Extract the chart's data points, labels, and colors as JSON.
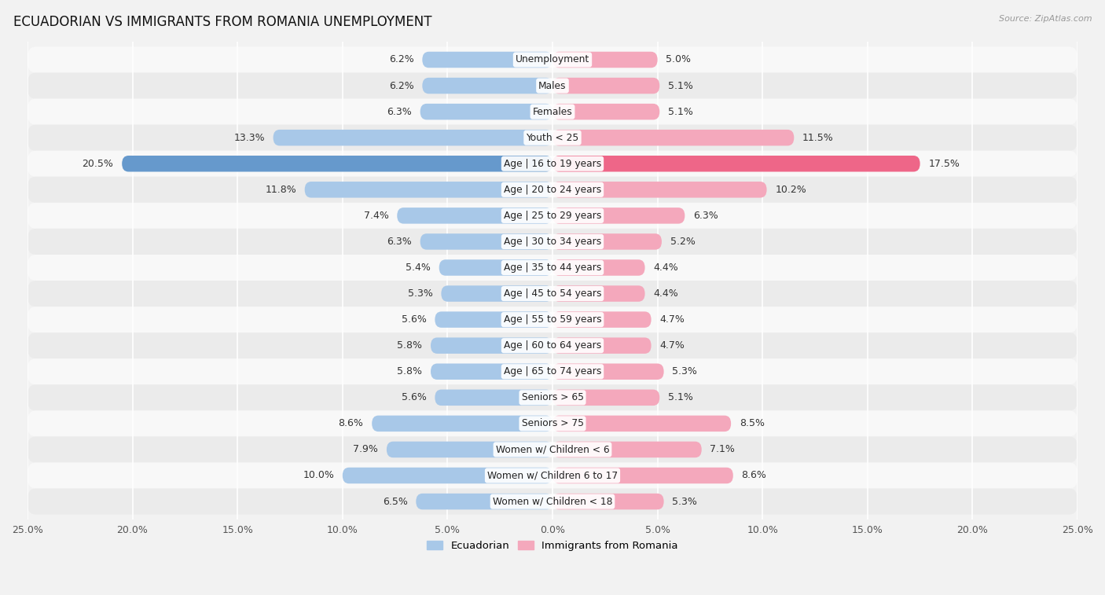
{
  "title": "ECUADORIAN VS IMMIGRANTS FROM ROMANIA UNEMPLOYMENT",
  "source": "Source: ZipAtlas.com",
  "categories": [
    "Unemployment",
    "Males",
    "Females",
    "Youth < 25",
    "Age | 16 to 19 years",
    "Age | 20 to 24 years",
    "Age | 25 to 29 years",
    "Age | 30 to 34 years",
    "Age | 35 to 44 years",
    "Age | 45 to 54 years",
    "Age | 55 to 59 years",
    "Age | 60 to 64 years",
    "Age | 65 to 74 years",
    "Seniors > 65",
    "Seniors > 75",
    "Women w/ Children < 6",
    "Women w/ Children 6 to 17",
    "Women w/ Children < 18"
  ],
  "ecuadorian": [
    6.2,
    6.2,
    6.3,
    13.3,
    20.5,
    11.8,
    7.4,
    6.3,
    5.4,
    5.3,
    5.6,
    5.8,
    5.8,
    5.6,
    8.6,
    7.9,
    10.0,
    6.5
  ],
  "romania": [
    5.0,
    5.1,
    5.1,
    11.5,
    17.5,
    10.2,
    6.3,
    5.2,
    4.4,
    4.4,
    4.7,
    4.7,
    5.3,
    5.1,
    8.5,
    7.1,
    8.6,
    5.3
  ],
  "color_ecuadorian": "#a8c8e8",
  "color_romania": "#f4a8bc",
  "color_ecuadorian_highlight": "#6699cc",
  "color_romania_highlight": "#ee6688",
  "background_color": "#f2f2f2",
  "row_bg_odd": "#ebebeb",
  "row_bg_even": "#f8f8f8",
  "xlim": 25.0,
  "legend_ecuadorian": "Ecuadorian",
  "legend_romania": "Immigrants from Romania"
}
